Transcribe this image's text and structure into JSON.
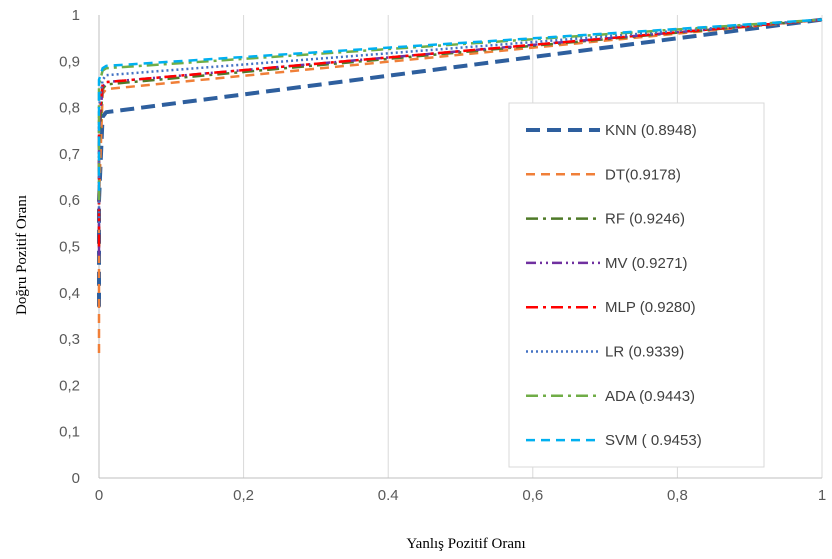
{
  "chart_data": {
    "type": "line",
    "xlabel": "Yanlış Pozitif Oranı",
    "ylabel": "Doğru Pozitif Oranı",
    "xlim": [
      0,
      1
    ],
    "ylim": [
      0,
      1
    ],
    "x_ticks": [
      {
        "value": 0,
        "label": "0"
      },
      {
        "value": 0.2,
        "label": "0,2"
      },
      {
        "value": 0.4,
        "label": "0.4"
      },
      {
        "value": 0.6,
        "label": "0,6"
      },
      {
        "value": 0.8,
        "label": "0,8"
      },
      {
        "value": 1,
        "label": "1"
      }
    ],
    "y_ticks": [
      {
        "value": 0,
        "label": "0"
      },
      {
        "value": 0.1,
        "label": "0,1"
      },
      {
        "value": 0.2,
        "label": "0,2"
      },
      {
        "value": 0.3,
        "label": "0,3"
      },
      {
        "value": 0.4,
        "label": "0,4"
      },
      {
        "value": 0.5,
        "label": "0,5"
      },
      {
        "value": 0.6,
        "label": "0,6"
      },
      {
        "value": 0.7,
        "label": "0,7"
      },
      {
        "value": 0.8,
        "label": "0,8"
      },
      {
        "value": 0.9,
        "label": "0,9"
      },
      {
        "value": 1,
        "label": "1"
      }
    ],
    "grid": "vertical",
    "legend_position": "bottom-right",
    "series": [
      {
        "name": "KNN (0.8948)",
        "color": "#2e5f9e",
        "dash": "long-dash",
        "x": [
          0,
          0,
          0.005,
          0.01,
          1
        ],
        "y": [
          0.37,
          0.6,
          0.78,
          0.79,
          0.99
        ]
      },
      {
        "name": "DT(0.9178)",
        "color": "#f07f38",
        "dash": "dash",
        "x": [
          0,
          0,
          0.005,
          0.01,
          1
        ],
        "y": [
          0.27,
          0.6,
          0.83,
          0.84,
          0.99
        ]
      },
      {
        "name": "RF (0.9246)",
        "color": "#4f7a28",
        "dash": "dash-dot",
        "x": [
          0,
          0,
          0.005,
          0.01,
          1
        ],
        "y": [
          0.5,
          0.72,
          0.84,
          0.85,
          0.99
        ]
      },
      {
        "name": "MV (0.9271)",
        "color": "#7030a0",
        "dash": "dash-dot-dot",
        "x": [
          0,
          0,
          0.005,
          0.01,
          1
        ],
        "y": [
          0.48,
          0.75,
          0.845,
          0.855,
          0.99
        ]
      },
      {
        "name": "MLP (0.9280)",
        "color": "#ff0000",
        "dash": "dash-dot",
        "x": [
          0,
          0,
          0.005,
          0.01,
          1
        ],
        "y": [
          0.5,
          0.77,
          0.85,
          0.855,
          0.99
        ]
      },
      {
        "name": "LR (0.9339)",
        "color": "#4472c4",
        "dash": "dot",
        "x": [
          0,
          0,
          0.005,
          0.01,
          1
        ],
        "y": [
          0.55,
          0.8,
          0.86,
          0.87,
          0.99
        ]
      },
      {
        "name": "ADA (0.9443)",
        "color": "#70ad47",
        "dash": "dash-dot",
        "x": [
          0,
          0,
          0.005,
          0.01,
          1
        ],
        "y": [
          0.6,
          0.85,
          0.88,
          0.885,
          0.99
        ]
      },
      {
        "name": "SVM ( 0.9453)",
        "color": "#00b0f0",
        "dash": "dash",
        "x": [
          0,
          0,
          0.005,
          0.01,
          1
        ],
        "y": [
          0.62,
          0.86,
          0.885,
          0.89,
          0.99
        ]
      }
    ]
  }
}
